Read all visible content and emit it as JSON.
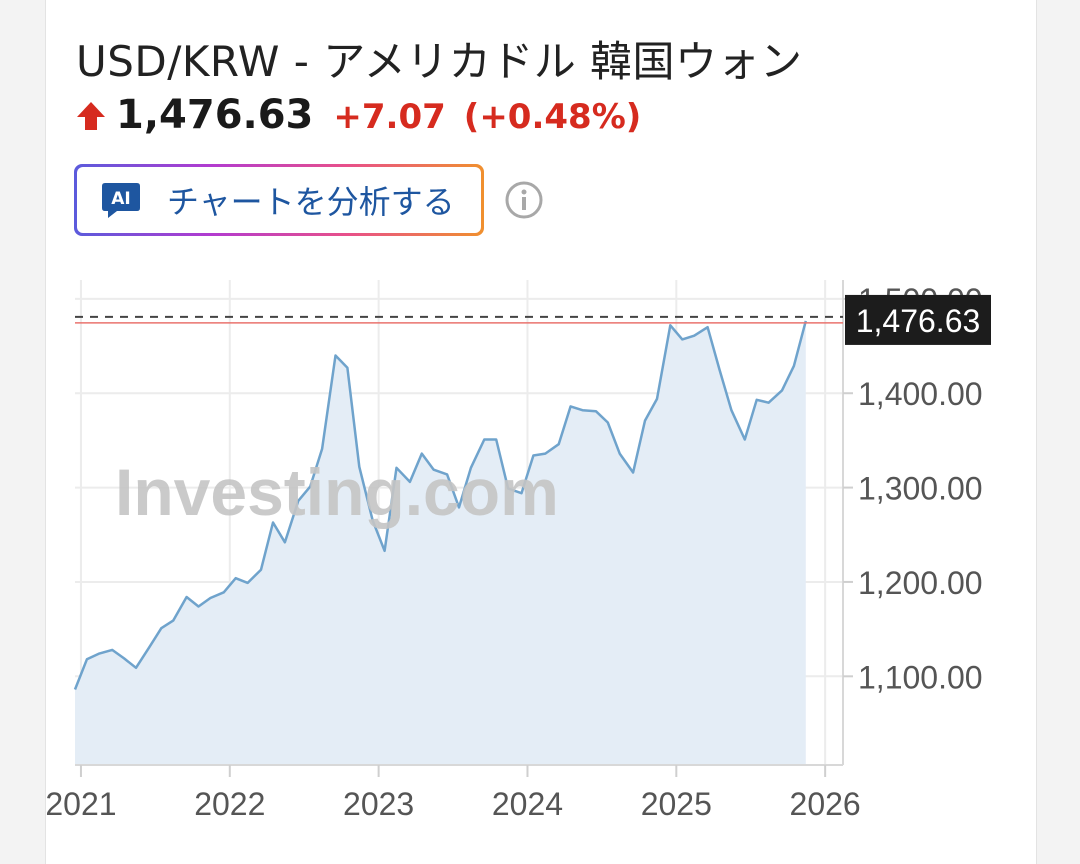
{
  "header": {
    "title": "USD/KRW - アメリカドル 韓国ウォン",
    "price": "1,476.63",
    "change": "+7.07",
    "change_pct": "(+0.48%)",
    "direction_icon": "up-arrow-icon",
    "up_color": "#d62b1f"
  },
  "ai_button": {
    "label": "チャートを分析する",
    "icon": "ai-chat-icon",
    "badge_text": "AI"
  },
  "info_icon": "info-icon",
  "watermark": "Investing.com",
  "chart_data": {
    "type": "area",
    "x_tick_labels": [
      "2021",
      "2022",
      "2023",
      "2024",
      "2025",
      "2026"
    ],
    "x_ticks": [
      2021.0,
      2022.0,
      2023.0,
      2024.0,
      2025.0,
      2026.0
    ],
    "y_tick_labels": [
      "1,500.00",
      "1,400.00",
      "1,300.00",
      "1,200.00",
      "1,100.00"
    ],
    "y_ticks": [
      1500,
      1400,
      1300,
      1200,
      1100
    ],
    "xlim": [
      2020.96,
      2026.12
    ],
    "ylim": [
      1006,
      1520
    ],
    "grid": true,
    "last_value_label": "1,476.63",
    "last_value": 1476.63,
    "series": [
      {
        "values": [
          [
            2020.96,
            1086
          ],
          [
            2021.04,
            1118
          ],
          [
            2021.12,
            1124
          ],
          [
            2021.21,
            1128
          ],
          [
            2021.29,
            1119
          ],
          [
            2021.37,
            1109
          ],
          [
            2021.46,
            1131
          ],
          [
            2021.54,
            1151
          ],
          [
            2021.62,
            1159
          ],
          [
            2021.71,
            1184
          ],
          [
            2021.79,
            1174
          ],
          [
            2021.87,
            1183
          ],
          [
            2021.96,
            1189
          ],
          [
            2022.04,
            1204
          ],
          [
            2022.12,
            1199
          ],
          [
            2022.21,
            1213
          ],
          [
            2022.29,
            1263
          ],
          [
            2022.37,
            1242
          ],
          [
            2022.46,
            1286
          ],
          [
            2022.54,
            1301
          ],
          [
            2022.62,
            1341
          ],
          [
            2022.71,
            1440
          ],
          [
            2022.79,
            1427
          ],
          [
            2022.87,
            1322
          ],
          [
            2022.96,
            1265
          ],
          [
            2023.04,
            1233
          ],
          [
            2023.12,
            1321
          ],
          [
            2023.21,
            1306
          ],
          [
            2023.29,
            1336
          ],
          [
            2023.37,
            1319
          ],
          [
            2023.46,
            1314
          ],
          [
            2023.54,
            1279
          ],
          [
            2023.62,
            1321
          ],
          [
            2023.71,
            1351
          ],
          [
            2023.79,
            1351
          ],
          [
            2023.87,
            1299
          ],
          [
            2023.96,
            1294
          ],
          [
            2024.04,
            1334
          ],
          [
            2024.12,
            1336
          ],
          [
            2024.21,
            1346
          ],
          [
            2024.29,
            1386
          ],
          [
            2024.37,
            1382
          ],
          [
            2024.46,
            1381
          ],
          [
            2024.54,
            1369
          ],
          [
            2024.62,
            1336
          ],
          [
            2024.71,
            1316
          ],
          [
            2024.79,
            1371
          ],
          [
            2024.87,
            1394
          ],
          [
            2024.96,
            1472
          ],
          [
            2025.04,
            1457
          ],
          [
            2025.12,
            1461
          ],
          [
            2025.21,
            1470
          ],
          [
            2025.29,
            1425
          ],
          [
            2025.37,
            1382
          ],
          [
            2025.46,
            1351
          ],
          [
            2025.54,
            1393
          ],
          [
            2025.62,
            1390
          ],
          [
            2025.71,
            1403
          ],
          [
            2025.79,
            1429
          ],
          [
            2025.87,
            1476.63
          ]
        ]
      }
    ],
    "line_color": "#6fa3cc",
    "fill_color": "#e4edf6",
    "last_line_color": "#e9736e",
    "label_bg": "#1c1c1c"
  }
}
